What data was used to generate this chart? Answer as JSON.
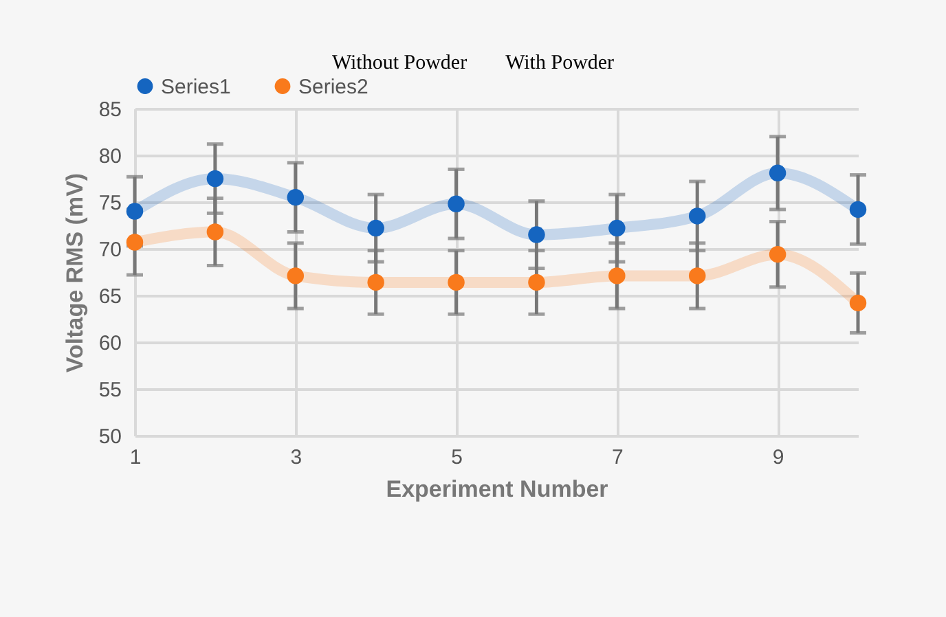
{
  "chart_data": {
    "type": "line",
    "xlabel": "Experiment Number",
    "ylabel": "Voltage RMS (mV)",
    "annotations": [
      "Without Powder",
      "With Powder"
    ],
    "x": [
      1,
      2,
      3,
      4,
      5,
      6,
      7,
      8,
      9,
      10
    ],
    "xlim": [
      1,
      10
    ],
    "xticks": [
      1,
      3,
      5,
      7,
      9
    ],
    "ylim": [
      50,
      85
    ],
    "yticks": [
      50,
      55,
      60,
      65,
      70,
      75,
      80,
      85
    ],
    "grid": true,
    "legend": "top",
    "marker": "circle",
    "line_style": "solid",
    "series": [
      {
        "name": "Series1",
        "color": "#1565c0",
        "values": [
          74,
          77.5,
          75.5,
          72.2,
          74.8,
          71.5,
          72.2,
          73.5,
          78.1,
          74.2
        ],
        "errors": [
          3.7,
          3.7,
          3.7,
          3.6,
          3.7,
          3.6,
          3.6,
          3.7,
          3.9,
          3.7
        ]
      },
      {
        "name": "Series2",
        "color": "#f97a1c",
        "values": [
          70.7,
          71.8,
          67.1,
          66.4,
          66.4,
          66.4,
          67.1,
          67.1,
          69.4,
          64.2
        ],
        "errors": [
          3.5,
          3.6,
          3.5,
          3.4,
          3.4,
          3.4,
          3.5,
          3.5,
          3.5,
          3.2
        ]
      }
    ]
  }
}
